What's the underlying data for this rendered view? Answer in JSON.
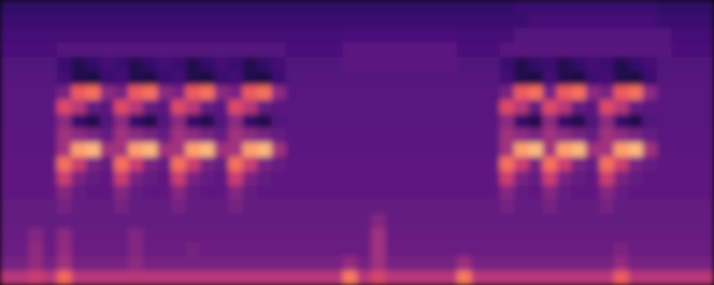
{
  "chart_data": {
    "type": "heatmap",
    "color": "magma",
    "zlim": [
      0,
      100
    ],
    "tick_labels": false,
    "cells": [
      [
        18,
        18,
        18,
        18,
        18,
        18,
        18,
        18,
        18,
        18,
        18,
        18,
        18,
        18,
        18,
        18,
        18,
        18,
        18,
        18,
        18,
        18,
        18,
        18,
        18,
        18,
        18,
        18,
        18,
        18,
        18,
        18,
        18,
        18,
        18,
        18,
        20,
        20,
        20,
        20,
        20,
        20,
        20,
        20,
        20,
        20,
        18,
        18,
        18,
        18
      ],
      [
        20,
        20,
        20,
        20,
        20,
        20,
        20,
        20,
        20,
        20,
        20,
        20,
        20,
        20,
        20,
        20,
        20,
        20,
        20,
        20,
        20,
        20,
        20,
        20,
        20,
        20,
        20,
        20,
        20,
        20,
        20,
        20,
        20,
        20,
        20,
        20,
        20,
        23,
        23,
        23,
        23,
        23,
        23,
        23,
        23,
        23,
        20,
        20,
        20,
        20
      ],
      [
        22,
        22,
        22,
        22,
        22,
        22,
        22,
        22,
        22,
        22,
        22,
        22,
        22,
        22,
        22,
        22,
        22,
        22,
        22,
        22,
        22,
        22,
        22,
        22,
        24,
        24,
        24,
        24,
        24,
        24,
        24,
        24,
        22,
        22,
        22,
        22,
        26,
        26,
        26,
        26,
        26,
        26,
        26,
        26,
        26,
        26,
        26,
        22,
        22,
        22
      ],
      [
        24,
        24,
        24,
        24,
        26,
        26,
        26,
        26,
        26,
        26,
        26,
        26,
        26,
        26,
        26,
        26,
        26,
        26,
        26,
        26,
        24,
        24,
        24,
        24,
        28,
        28,
        28,
        28,
        28,
        28,
        28,
        28,
        24,
        24,
        24,
        27,
        27,
        27,
        27,
        27,
        27,
        27,
        27,
        27,
        27,
        27,
        27,
        24,
        24,
        24
      ],
      [
        25,
        25,
        25,
        25,
        20,
        14,
        18,
        22,
        20,
        14,
        18,
        22,
        20,
        14,
        18,
        22,
        20,
        14,
        18,
        22,
        25,
        25,
        25,
        25,
        28,
        28,
        28,
        28,
        28,
        28,
        28,
        28,
        25,
        25,
        25,
        20,
        14,
        18,
        20,
        14,
        18,
        22,
        20,
        14,
        18,
        22,
        25,
        25,
        25,
        25
      ],
      [
        26,
        26,
        26,
        26,
        22,
        14,
        12,
        20,
        22,
        14,
        12,
        20,
        22,
        14,
        12,
        20,
        22,
        14,
        12,
        20,
        26,
        26,
        26,
        26,
        26,
        26,
        26,
        26,
        26,
        26,
        26,
        26,
        26,
        26,
        26,
        22,
        14,
        12,
        22,
        14,
        12,
        20,
        22,
        14,
        12,
        20,
        26,
        26,
        26,
        26
      ],
      [
        27,
        27,
        27,
        27,
        35,
        65,
        70,
        40,
        35,
        65,
        70,
        40,
        35,
        65,
        70,
        40,
        35,
        65,
        70,
        40,
        27,
        27,
        27,
        27,
        27,
        27,
        27,
        27,
        27,
        27,
        27,
        27,
        27,
        27,
        27,
        35,
        65,
        70,
        35,
        65,
        70,
        40,
        35,
        65,
        70,
        40,
        27,
        27,
        27,
        27
      ],
      [
        27,
        27,
        27,
        27,
        60,
        50,
        30,
        28,
        60,
        50,
        30,
        28,
        60,
        50,
        30,
        28,
        60,
        50,
        30,
        28,
        27,
        27,
        27,
        27,
        27,
        27,
        27,
        27,
        27,
        27,
        27,
        27,
        27,
        27,
        27,
        60,
        50,
        30,
        60,
        50,
        30,
        28,
        60,
        50,
        30,
        28,
        27,
        27,
        27,
        27
      ],
      [
        27,
        27,
        27,
        27,
        40,
        18,
        14,
        25,
        40,
        18,
        14,
        25,
        40,
        18,
        14,
        25,
        40,
        18,
        14,
        25,
        27,
        27,
        27,
        27,
        27,
        27,
        27,
        27,
        27,
        27,
        27,
        27,
        27,
        27,
        27,
        40,
        18,
        14,
        40,
        18,
        14,
        25,
        40,
        18,
        14,
        25,
        27,
        27,
        27,
        27
      ],
      [
        28,
        28,
        28,
        28,
        45,
        40,
        35,
        30,
        45,
        40,
        35,
        30,
        45,
        40,
        35,
        30,
        45,
        40,
        35,
        30,
        28,
        28,
        28,
        28,
        28,
        28,
        28,
        28,
        28,
        28,
        28,
        28,
        28,
        28,
        28,
        45,
        40,
        35,
        45,
        40,
        35,
        30,
        45,
        40,
        35,
        30,
        28,
        28,
        28,
        28
      ],
      [
        28,
        28,
        28,
        28,
        45,
        80,
        85,
        45,
        45,
        80,
        85,
        45,
        45,
        80,
        85,
        45,
        45,
        80,
        85,
        45,
        28,
        28,
        28,
        28,
        28,
        28,
        28,
        28,
        28,
        28,
        28,
        28,
        28,
        28,
        28,
        45,
        80,
        85,
        45,
        80,
        85,
        45,
        45,
        80,
        85,
        45,
        28,
        28,
        28,
        28
      ],
      [
        29,
        29,
        29,
        29,
        70,
        55,
        35,
        30,
        70,
        55,
        35,
        30,
        70,
        55,
        35,
        30,
        70,
        55,
        35,
        30,
        29,
        29,
        29,
        29,
        29,
        29,
        29,
        29,
        29,
        29,
        29,
        29,
        29,
        29,
        29,
        70,
        55,
        35,
        70,
        55,
        35,
        30,
        70,
        55,
        35,
        30,
        29,
        29,
        29,
        29
      ],
      [
        29,
        29,
        29,
        29,
        55,
        35,
        30,
        29,
        55,
        35,
        30,
        29,
        55,
        35,
        30,
        29,
        55,
        35,
        30,
        29,
        29,
        29,
        29,
        29,
        29,
        29,
        29,
        29,
        29,
        29,
        29,
        29,
        29,
        29,
        29,
        55,
        35,
        30,
        55,
        35,
        30,
        29,
        55,
        35,
        30,
        29,
        29,
        29,
        29,
        29
      ],
      [
        29,
        29,
        29,
        29,
        38,
        30,
        29,
        29,
        38,
        30,
        29,
        29,
        38,
        30,
        29,
        29,
        38,
        30,
        29,
        29,
        29,
        29,
        29,
        29,
        29,
        29,
        29,
        29,
        29,
        29,
        29,
        29,
        29,
        29,
        29,
        38,
        30,
        29,
        38,
        30,
        29,
        29,
        38,
        30,
        29,
        29,
        29,
        29,
        29,
        29
      ],
      [
        30,
        30,
        30,
        30,
        34,
        30,
        30,
        30,
        34,
        30,
        30,
        30,
        34,
        30,
        30,
        30,
        34,
        30,
        30,
        30,
        30,
        30,
        30,
        30,
        30,
        30,
        30,
        30,
        30,
        30,
        30,
        30,
        30,
        30,
        30,
        34,
        30,
        30,
        34,
        30,
        30,
        30,
        34,
        30,
        30,
        30,
        30,
        30,
        30,
        30
      ],
      [
        30,
        30,
        30,
        30,
        30,
        30,
        30,
        30,
        30,
        30,
        30,
        30,
        30,
        30,
        30,
        30,
        30,
        30,
        30,
        30,
        30,
        30,
        30,
        30,
        30,
        30,
        38,
        30,
        30,
        30,
        30,
        30,
        30,
        30,
        30,
        30,
        30,
        30,
        30,
        30,
        30,
        30,
        30,
        30,
        30,
        30,
        30,
        30,
        30,
        30
      ],
      [
        31,
        31,
        38,
        31,
        40,
        31,
        31,
        31,
        31,
        37,
        31,
        31,
        31,
        31,
        31,
        31,
        31,
        31,
        31,
        31,
        31,
        31,
        31,
        31,
        31,
        31,
        45,
        31,
        31,
        31,
        31,
        31,
        31,
        31,
        31,
        31,
        31,
        31,
        31,
        31,
        31,
        31,
        31,
        31,
        31,
        31,
        31,
        31,
        31,
        31
      ],
      [
        32,
        32,
        40,
        32,
        42,
        32,
        32,
        32,
        32,
        38,
        32,
        32,
        32,
        34,
        32,
        32,
        32,
        32,
        32,
        32,
        32,
        32,
        32,
        32,
        32,
        32,
        45,
        32,
        32,
        32,
        32,
        32,
        32,
        32,
        32,
        32,
        32,
        32,
        32,
        32,
        32,
        32,
        32,
        36,
        32,
        32,
        32,
        32,
        32,
        32
      ],
      [
        34,
        34,
        42,
        34,
        45,
        34,
        34,
        34,
        34,
        40,
        34,
        34,
        34,
        34,
        34,
        34,
        34,
        34,
        34,
        34,
        34,
        34,
        34,
        34,
        42,
        34,
        45,
        34,
        34,
        34,
        34,
        34,
        44,
        34,
        34,
        34,
        34,
        34,
        34,
        34,
        34,
        34,
        34,
        42,
        34,
        34,
        34,
        34,
        34,
        34
      ],
      [
        50,
        50,
        55,
        50,
        68,
        50,
        50,
        50,
        50,
        50,
        50,
        50,
        50,
        50,
        50,
        50,
        50,
        50,
        50,
        50,
        50,
        50,
        50,
        50,
        72,
        50,
        58,
        50,
        50,
        50,
        50,
        50,
        72,
        50,
        50,
        50,
        50,
        50,
        50,
        50,
        50,
        50,
        50,
        66,
        50,
        50,
        50,
        50,
        50,
        50
      ]
    ]
  }
}
